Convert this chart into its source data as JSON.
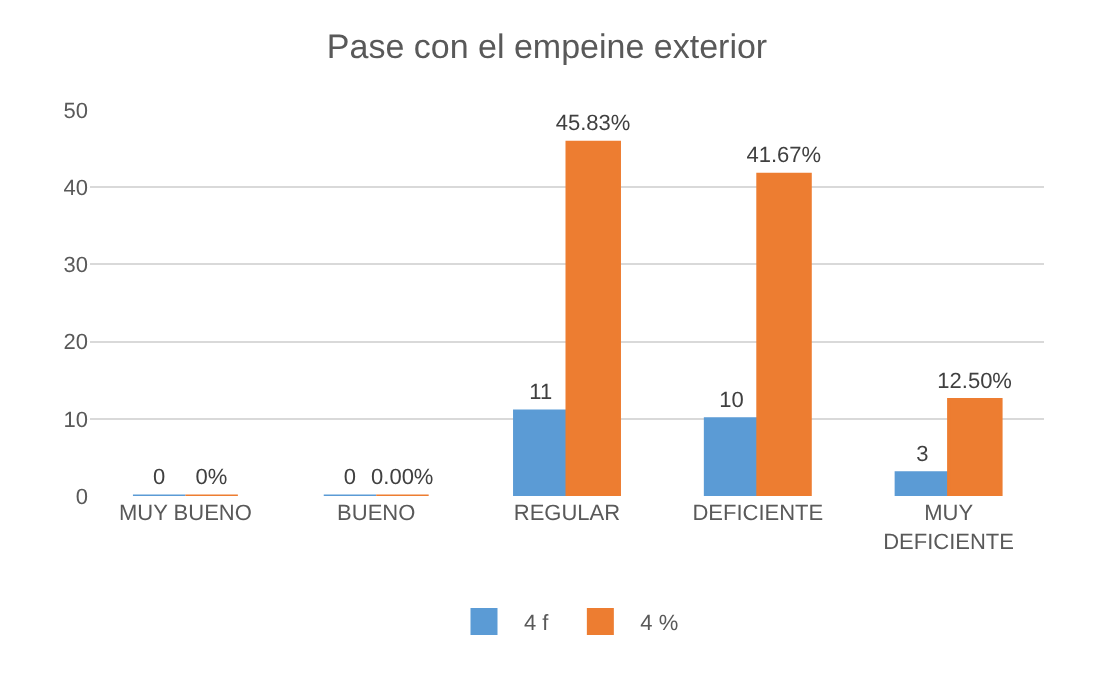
{
  "chart_data": {
    "type": "bar",
    "title": "Pase con el empeine exterior",
    "categories": [
      "MUY BUENO",
      "BUENO",
      "REGULAR",
      "DEFICIENTE",
      "MUY DEFICIENTE"
    ],
    "series": [
      {
        "name": "4 f",
        "color": "#5b9bd5",
        "values": [
          0,
          0,
          11,
          10,
          3
        ],
        "value_labels": [
          "0",
          "0",
          "11",
          "10",
          "3"
        ]
      },
      {
        "name": "4 %",
        "color": "#ed7d31",
        "values": [
          0,
          0,
          45.83,
          41.67,
          12.5
        ],
        "value_labels": [
          "0%",
          "0.00%",
          "45.83%",
          "41.67%",
          "12.50%"
        ]
      }
    ],
    "ylim": [
      0,
      50
    ],
    "yticks": [
      0,
      10,
      20,
      30,
      40,
      50
    ],
    "grid": "y",
    "legend": "bottom"
  }
}
